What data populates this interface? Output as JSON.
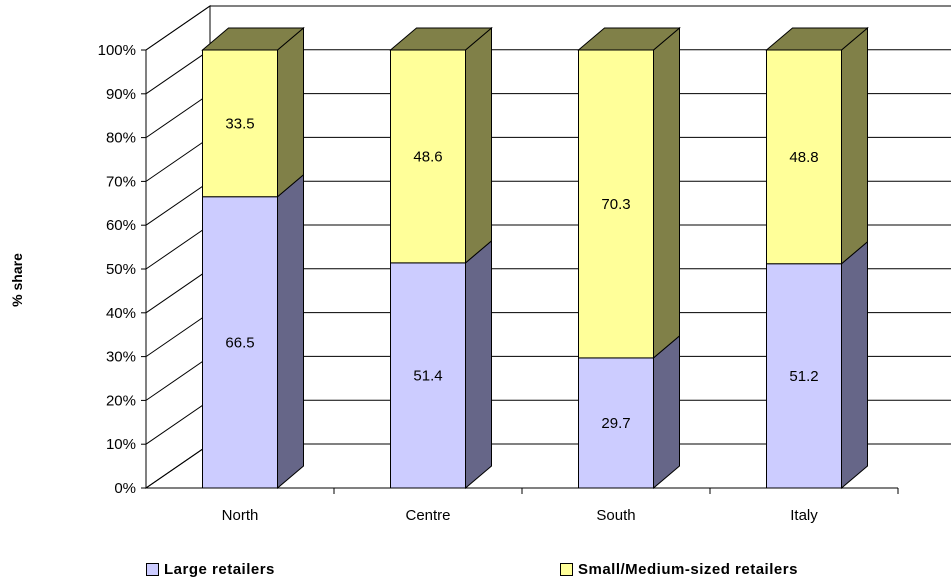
{
  "chart_data": {
    "type": "bar",
    "stacked": true,
    "three_d": true,
    "categories": [
      "North",
      "Centre",
      "South",
      "Italy"
    ],
    "series": [
      {
        "name": "Large retailers",
        "values": [
          66.5,
          51.4,
          29.7,
          51.2
        ],
        "color": "#ccccff",
        "side_color": "#666688"
      },
      {
        "name": "Small/Medium-sized retailers",
        "values": [
          33.5,
          48.6,
          70.3,
          48.8
        ],
        "color": "#ffff99",
        "side_color": "#808048"
      }
    ],
    "ylabel": "% share",
    "yticks": [
      "0%",
      "10%",
      "20%",
      "30%",
      "40%",
      "50%",
      "60%",
      "70%",
      "80%",
      "90%",
      "100%"
    ],
    "ylim": [
      0,
      100
    ],
    "grid": true,
    "legend_position": "bottom"
  }
}
